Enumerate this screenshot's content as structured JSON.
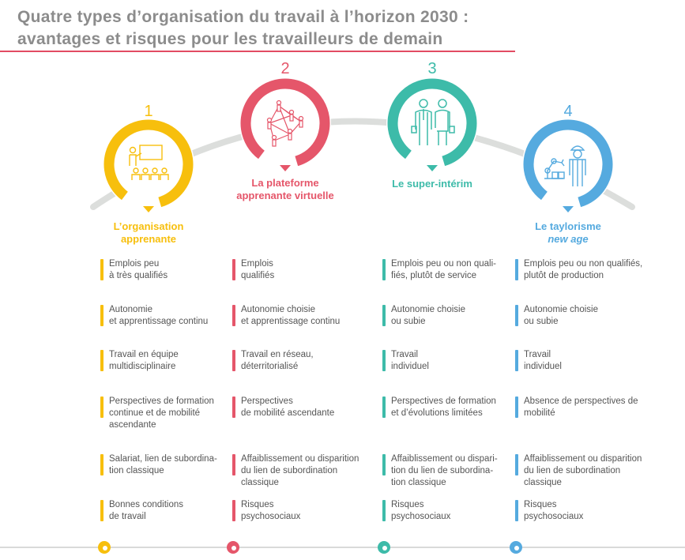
{
  "title": {
    "line1": "Quatre types d’organisation du travail à l’horizon 2030 :",
    "line2": "avantages et risques pour les travailleurs de demain"
  },
  "colors": {
    "accent": "#e24b62",
    "arc": "#dcdedc"
  },
  "columns": [
    {
      "number": "1",
      "name": "L’organisation\napprenante",
      "name_italic": "",
      "color": "#f7bf0d",
      "icon": "teacher-classroom-icon",
      "rows": [
        "Emplois peu\nà très qualifiés",
        "Autonomie\net apprentissage continu",
        "Travail en équipe\nmultidisciplinaire",
        "Perspectives de formation\ncontinue et de mobilité\nascendante",
        "Salariat, lien de subordina-\ntion classique",
        "Bonnes conditions\nde travail"
      ]
    },
    {
      "number": "2",
      "name": "La plateforme\napprenante virtuelle",
      "name_italic": "",
      "color": "#e5566a",
      "icon": "network-people-icon",
      "rows": [
        "Emplois\nqualifiés",
        "Autonomie choisie\net apprentissage continu",
        "Travail en réseau,\ndéterritorialisé",
        "Perspectives\nde mobilité ascendante",
        "Affaiblissement ou disparition\ndu lien de subordination\nclassique",
        "Risques\npsychosociaux"
      ]
    },
    {
      "number": "3",
      "name": "Le super-intérim",
      "name_italic": "",
      "color": "#3dbba9",
      "icon": "business-people-icon",
      "rows": [
        "Emplois peu ou non quali-\nfiés, plutôt de service",
        "Autonomie choisie\nou subie",
        "Travail\nindividuel",
        "Perspectives de formation\net d’évolutions limitées",
        "Affaiblissement ou dispari-\ntion du lien de subordina-\ntion classique",
        "Risques\npsychosociaux"
      ]
    },
    {
      "number": "4",
      "name": "Le taylorisme",
      "name_italic": "new age",
      "color": "#55aadf",
      "icon": "robot-worker-icon",
      "rows": [
        "Emplois peu ou non qualifiés,\nplutôt de production",
        "Autonomie choisie\nou subie",
        "Travail\nindividuel",
        "Absence de perspectives de\nmobilité",
        "Affaiblissement ou disparition\ndu lien de subordination\nclassique",
        "Risques\npsychosociaux"
      ]
    }
  ]
}
